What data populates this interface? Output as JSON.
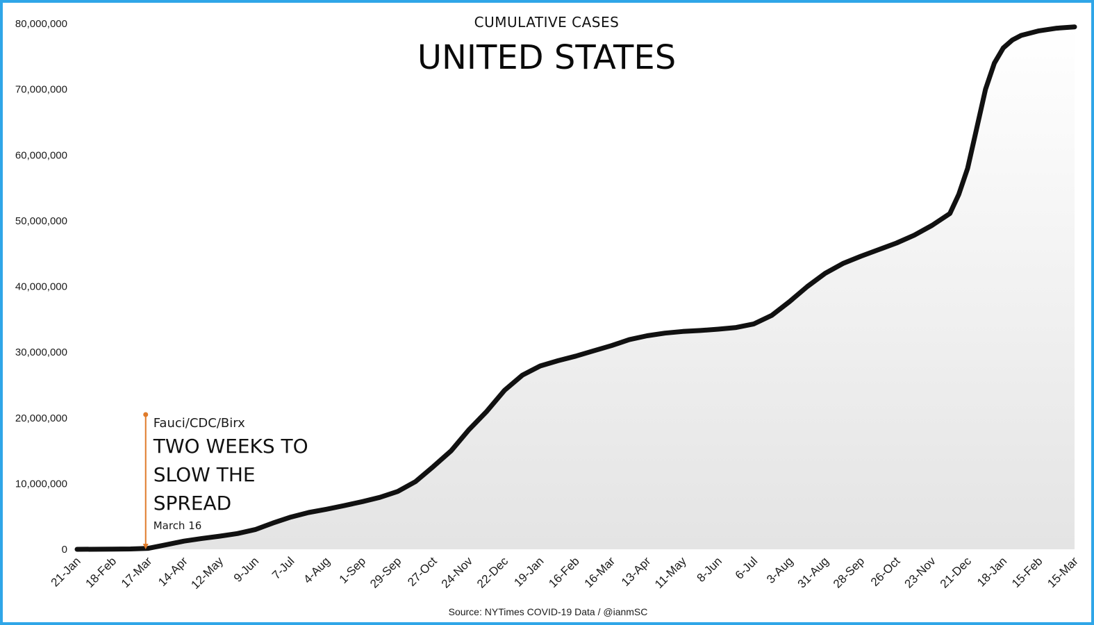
{
  "chart_data": {
    "type": "area",
    "subtitle": "CUMULATIVE CASES",
    "title": "UNITED STATES",
    "source": "Source: NYTimes COVID-19 Data / @ianmSC",
    "ylim": [
      0,
      80000000
    ],
    "yticks": [
      0,
      10000000,
      20000000,
      30000000,
      40000000,
      50000000,
      60000000,
      70000000,
      80000000
    ],
    "ytick_labels": [
      "0",
      "10,000,000",
      "20,000,000",
      "30,000,000",
      "40,000,000",
      "50,000,000",
      "60,000,000",
      "70,000,000",
      "80,000,000"
    ],
    "xtick_labels": [
      "21-Jan",
      "18-Feb",
      "17-Mar",
      "14-Apr",
      "12-May",
      "9-Jun",
      "7-Jul",
      "4-Aug",
      "1-Sep",
      "29-Sep",
      "27-Oct",
      "24-Nov",
      "22-Dec",
      "19-Jan",
      "16-Feb",
      "16-Mar",
      "13-Apr",
      "11-May",
      "8-Jun",
      "6-Jul",
      "3-Aug",
      "31-Aug",
      "28-Sep",
      "26-Oct",
      "23-Nov",
      "21-Dec",
      "18-Jan",
      "15-Feb",
      "15-Mar"
    ],
    "x_unit": "weeks since first tick",
    "grid": false,
    "series": [
      {
        "line_color": "#111111",
        "points": [
          [
            0,
            0
          ],
          [
            4,
            20000
          ],
          [
            6,
            50000
          ],
          [
            8,
            150000
          ],
          [
            10,
            700000
          ],
          [
            12,
            1250000
          ],
          [
            14,
            1650000
          ],
          [
            16,
            2000000
          ],
          [
            18,
            2400000
          ],
          [
            20,
            3000000
          ],
          [
            22,
            4000000
          ],
          [
            24,
            4900000
          ],
          [
            26,
            5600000
          ],
          [
            28,
            6100000
          ],
          [
            30,
            6650000
          ],
          [
            32,
            7250000
          ],
          [
            34,
            7900000
          ],
          [
            36,
            8800000
          ],
          [
            38,
            10300000
          ],
          [
            40,
            12600000
          ],
          [
            42,
            15000000
          ],
          [
            44,
            18200000
          ],
          [
            46,
            21000000
          ],
          [
            48,
            24200000
          ],
          [
            50,
            26500000
          ],
          [
            52,
            27900000
          ],
          [
            54,
            28700000
          ],
          [
            56,
            29400000
          ],
          [
            58,
            30200000
          ],
          [
            60,
            31000000
          ],
          [
            62,
            31900000
          ],
          [
            64,
            32500000
          ],
          [
            66,
            32900000
          ],
          [
            68,
            33150000
          ],
          [
            70,
            33300000
          ],
          [
            72,
            33500000
          ],
          [
            74,
            33750000
          ],
          [
            76,
            34300000
          ],
          [
            78,
            35600000
          ],
          [
            80,
            37700000
          ],
          [
            82,
            40000000
          ],
          [
            84,
            42000000
          ],
          [
            86,
            43500000
          ],
          [
            88,
            44600000
          ],
          [
            90,
            45600000
          ],
          [
            92,
            46600000
          ],
          [
            94,
            47800000
          ],
          [
            96,
            49300000
          ],
          [
            98,
            51100000
          ],
          [
            99,
            54000000
          ],
          [
            100,
            58000000
          ],
          [
            101,
            64000000
          ],
          [
            102,
            70000000
          ],
          [
            103,
            74000000
          ],
          [
            104,
            76300000
          ],
          [
            105,
            77500000
          ],
          [
            106,
            78200000
          ],
          [
            108,
            78900000
          ],
          [
            110,
            79300000
          ],
          [
            112,
            79500000
          ]
        ]
      }
    ],
    "annotation": {
      "x": 7.7,
      "y": 20500000,
      "color": "#e07b2a",
      "label_small": "Fauci/CDC/Birx",
      "label_big_lines": [
        "TWO WEEKS TO",
        "SLOW THE",
        "SPREAD"
      ],
      "label_date": "March 16"
    }
  }
}
